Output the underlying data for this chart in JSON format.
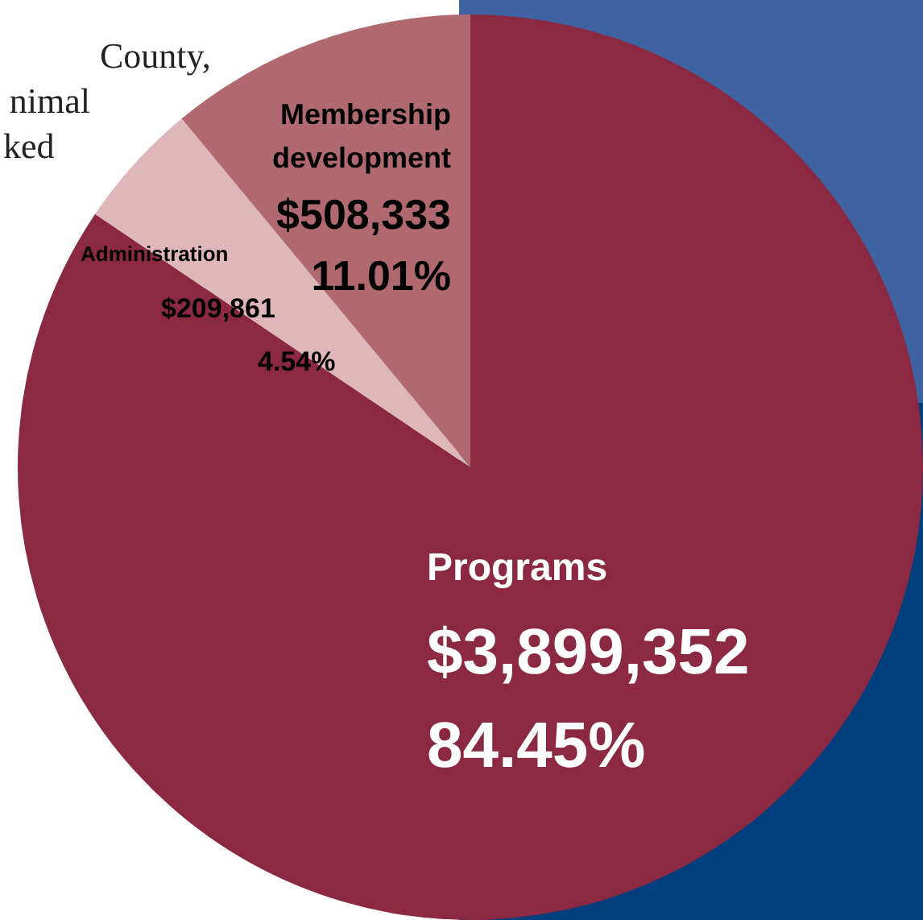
{
  "chart_data": {
    "type": "pie",
    "categories": [
      "Programs",
      "Administration",
      "Membership development"
    ],
    "values": [
      3899352,
      209861,
      508333
    ],
    "colors": [
      "#8b2942",
      "#dfb6b9",
      "#b0696f"
    ],
    "value_labels": [
      "$3,899,352\n84.45%",
      "$209,861\n4.54%",
      "$508,333\n11.01%"
    ],
    "annotations": [
      "County,",
      "nimal",
      "ked"
    ]
  }
}
